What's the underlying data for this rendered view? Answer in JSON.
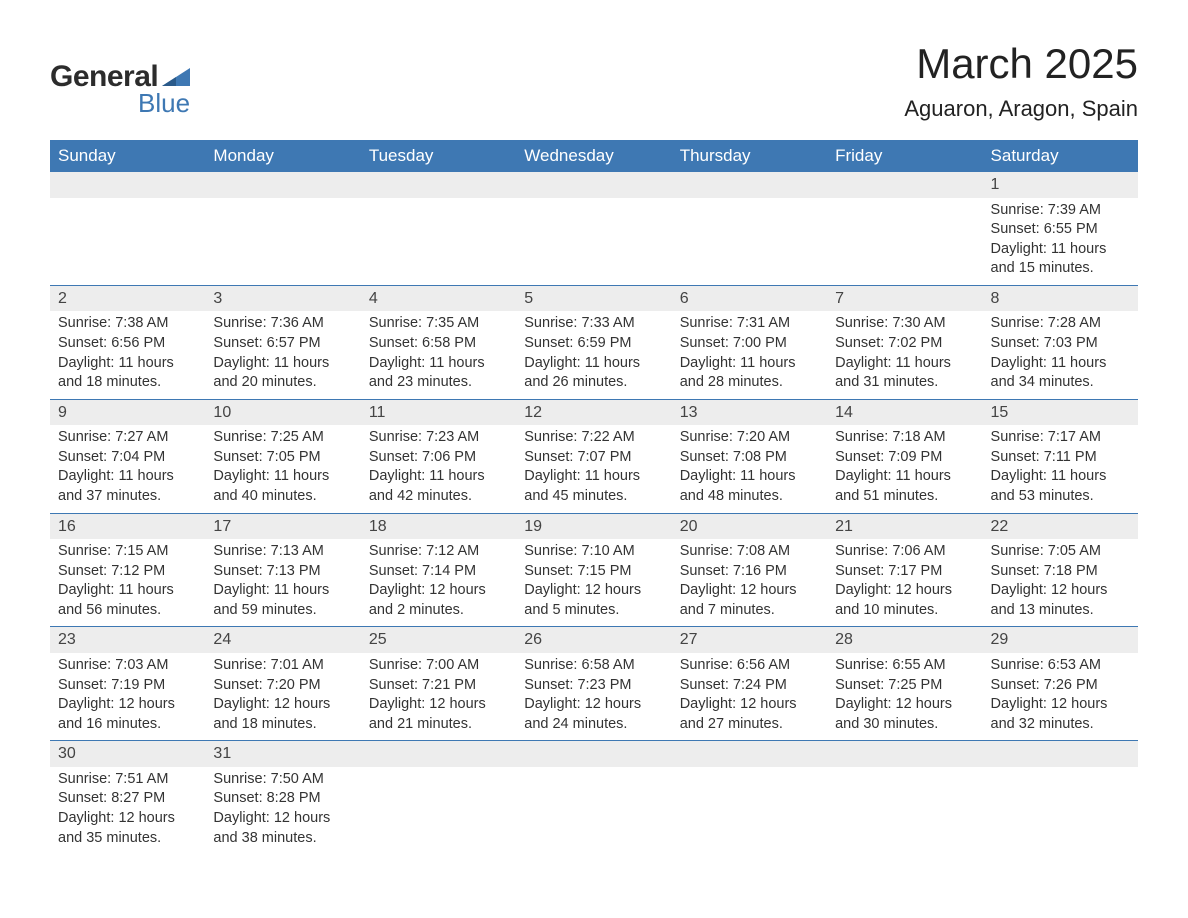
{
  "logo": {
    "text1": "General",
    "text2": "Blue",
    "icon_color": "#3e78b3"
  },
  "title": "March 2025",
  "location": "Aguaron, Aragon, Spain",
  "colors": {
    "header_bg": "#3e78b3",
    "header_text": "#ffffff",
    "daynum_bg": "#ededed",
    "row_border": "#3e78b3",
    "body_text": "#333333"
  },
  "typography": {
    "title_fontsize": 42,
    "location_fontsize": 22,
    "weekday_fontsize": 17,
    "daynum_fontsize": 16,
    "detail_fontsize": 14.5
  },
  "weekdays": [
    "Sunday",
    "Monday",
    "Tuesday",
    "Wednesday",
    "Thursday",
    "Friday",
    "Saturday"
  ],
  "labels": {
    "sunrise": "Sunrise: ",
    "sunset": "Sunset: ",
    "daylight": "Daylight: "
  },
  "weeks": [
    [
      null,
      null,
      null,
      null,
      null,
      null,
      {
        "n": "1",
        "sr": "7:39 AM",
        "ss": "6:55 PM",
        "dl": "11 hours and 15 minutes."
      }
    ],
    [
      {
        "n": "2",
        "sr": "7:38 AM",
        "ss": "6:56 PM",
        "dl": "11 hours and 18 minutes."
      },
      {
        "n": "3",
        "sr": "7:36 AM",
        "ss": "6:57 PM",
        "dl": "11 hours and 20 minutes."
      },
      {
        "n": "4",
        "sr": "7:35 AM",
        "ss": "6:58 PM",
        "dl": "11 hours and 23 minutes."
      },
      {
        "n": "5",
        "sr": "7:33 AM",
        "ss": "6:59 PM",
        "dl": "11 hours and 26 minutes."
      },
      {
        "n": "6",
        "sr": "7:31 AM",
        "ss": "7:00 PM",
        "dl": "11 hours and 28 minutes."
      },
      {
        "n": "7",
        "sr": "7:30 AM",
        "ss": "7:02 PM",
        "dl": "11 hours and 31 minutes."
      },
      {
        "n": "8",
        "sr": "7:28 AM",
        "ss": "7:03 PM",
        "dl": "11 hours and 34 minutes."
      }
    ],
    [
      {
        "n": "9",
        "sr": "7:27 AM",
        "ss": "7:04 PM",
        "dl": "11 hours and 37 minutes."
      },
      {
        "n": "10",
        "sr": "7:25 AM",
        "ss": "7:05 PM",
        "dl": "11 hours and 40 minutes."
      },
      {
        "n": "11",
        "sr": "7:23 AM",
        "ss": "7:06 PM",
        "dl": "11 hours and 42 minutes."
      },
      {
        "n": "12",
        "sr": "7:22 AM",
        "ss": "7:07 PM",
        "dl": "11 hours and 45 minutes."
      },
      {
        "n": "13",
        "sr": "7:20 AM",
        "ss": "7:08 PM",
        "dl": "11 hours and 48 minutes."
      },
      {
        "n": "14",
        "sr": "7:18 AM",
        "ss": "7:09 PM",
        "dl": "11 hours and 51 minutes."
      },
      {
        "n": "15",
        "sr": "7:17 AM",
        "ss": "7:11 PM",
        "dl": "11 hours and 53 minutes."
      }
    ],
    [
      {
        "n": "16",
        "sr": "7:15 AM",
        "ss": "7:12 PM",
        "dl": "11 hours and 56 minutes."
      },
      {
        "n": "17",
        "sr": "7:13 AM",
        "ss": "7:13 PM",
        "dl": "11 hours and 59 minutes."
      },
      {
        "n": "18",
        "sr": "7:12 AM",
        "ss": "7:14 PM",
        "dl": "12 hours and 2 minutes."
      },
      {
        "n": "19",
        "sr": "7:10 AM",
        "ss": "7:15 PM",
        "dl": "12 hours and 5 minutes."
      },
      {
        "n": "20",
        "sr": "7:08 AM",
        "ss": "7:16 PM",
        "dl": "12 hours and 7 minutes."
      },
      {
        "n": "21",
        "sr": "7:06 AM",
        "ss": "7:17 PM",
        "dl": "12 hours and 10 minutes."
      },
      {
        "n": "22",
        "sr": "7:05 AM",
        "ss": "7:18 PM",
        "dl": "12 hours and 13 minutes."
      }
    ],
    [
      {
        "n": "23",
        "sr": "7:03 AM",
        "ss": "7:19 PM",
        "dl": "12 hours and 16 minutes."
      },
      {
        "n": "24",
        "sr": "7:01 AM",
        "ss": "7:20 PM",
        "dl": "12 hours and 18 minutes."
      },
      {
        "n": "25",
        "sr": "7:00 AM",
        "ss": "7:21 PM",
        "dl": "12 hours and 21 minutes."
      },
      {
        "n": "26",
        "sr": "6:58 AM",
        "ss": "7:23 PM",
        "dl": "12 hours and 24 minutes."
      },
      {
        "n": "27",
        "sr": "6:56 AM",
        "ss": "7:24 PM",
        "dl": "12 hours and 27 minutes."
      },
      {
        "n": "28",
        "sr": "6:55 AM",
        "ss": "7:25 PM",
        "dl": "12 hours and 30 minutes."
      },
      {
        "n": "29",
        "sr": "6:53 AM",
        "ss": "7:26 PM",
        "dl": "12 hours and 32 minutes."
      }
    ],
    [
      {
        "n": "30",
        "sr": "7:51 AM",
        "ss": "8:27 PM",
        "dl": "12 hours and 35 minutes."
      },
      {
        "n": "31",
        "sr": "7:50 AM",
        "ss": "8:28 PM",
        "dl": "12 hours and 38 minutes."
      },
      null,
      null,
      null,
      null,
      null
    ]
  ]
}
